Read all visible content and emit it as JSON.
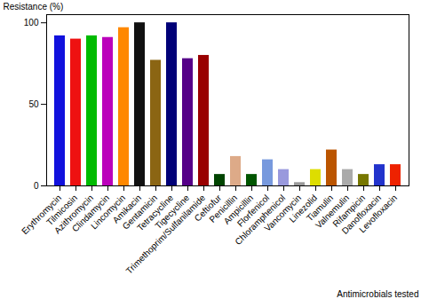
{
  "chart_data": {
    "type": "bar",
    "categories": [
      "Erythromycin",
      "Tilmicosin",
      "Azithromycin",
      "Clindamycin",
      "Lincomycin",
      "Amikacin",
      "Gentamicin",
      "Tetracycline",
      "Tigecycline",
      "Trimethoprim/Sulfanilamide",
      "Ceftiofur",
      "Penicillin",
      "Ampicillin",
      "Florfenicol",
      "Chloramphenicol",
      "Vancomycin",
      "Linezolid",
      "Tiamulin",
      "Valnemulin",
      "Rifampicin",
      "Danofloxacin",
      "Levofloxacin"
    ],
    "values": [
      92,
      90,
      92,
      91,
      97,
      100,
      77,
      100,
      78,
      80,
      7,
      18,
      7,
      16,
      10,
      2,
      10,
      22,
      10,
      7,
      13,
      13
    ],
    "colors": [
      "#1111DD",
      "#EE1111",
      "#00BB00",
      "#BB00BB",
      "#FF8800",
      "#111111",
      "#8B6513",
      "#000077",
      "#550088",
      "#990000",
      "#004400",
      "#DDAA88",
      "#005500",
      "#7799DD",
      "#9999DD",
      "#999999",
      "#DDDD00",
      "#BB5500",
      "#AAAAAA",
      "#777700",
      "#2233CC",
      "#EE2200"
    ],
    "ylabel": "Resistance (%)",
    "xlabel": "Antimicrobials tested",
    "ylim": [
      0,
      105
    ],
    "yticks": [
      0,
      50,
      100
    ],
    "grid": false
  }
}
